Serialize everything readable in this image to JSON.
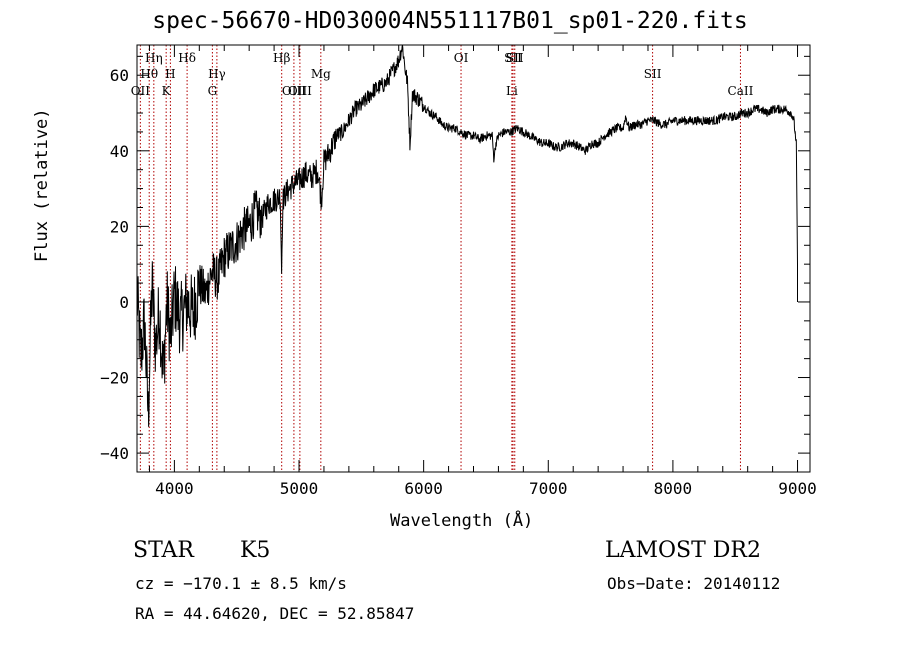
{
  "title": "spec-56670-HD030004N551117B01_sp01-220.fits",
  "footer": {
    "object_class": "STAR",
    "spectral_type": "K5",
    "survey": "LAMOST DR2",
    "cz_text": "cz = −170.1 ± 8.5 km/s",
    "obs_date_text": "Obs−Date: 20140112",
    "radec_text": "RA =  44.64620, DEC =  52.85847"
  },
  "chart_data": {
    "type": "line",
    "title": "spec-56670-HD030004N551117B01_sp01-220.fits",
    "xlabel": "Wavelength (Å)",
    "ylabel": "Flux (relative)",
    "xlim": [
      3700,
      9100
    ],
    "ylim": [
      -45,
      68
    ],
    "x_ticks": [
      4000,
      5000,
      6000,
      7000,
      8000,
      9000
    ],
    "y_ticks": [
      -40,
      -20,
      0,
      20,
      40,
      60
    ],
    "line_color": "#000000",
    "marker_color": "#b00000",
    "series": [
      {
        "x": [
          3700,
          3730,
          3760,
          3790,
          3820,
          3850,
          3880,
          3910,
          3940,
          3970,
          4000,
          4050,
          4100,
          4150,
          4200,
          4250,
          4300,
          4350,
          4400,
          4450,
          4500,
          4550,
          4600,
          4650,
          4700,
          4750,
          4800,
          4850,
          4860,
          4870,
          4900,
          4950,
          5000,
          5050,
          5100,
          5150,
          5180,
          5200,
          5250,
          5300,
          5350,
          5400,
          5450,
          5500,
          5550,
          5600,
          5650,
          5700,
          5750,
          5800,
          5830,
          5850,
          5870,
          5890,
          5900,
          5910,
          5950,
          6000,
          6050,
          6100,
          6150,
          6200,
          6250,
          6300,
          6350,
          6400,
          6450,
          6500,
          6550,
          6563,
          6580,
          6600,
          6650,
          6700,
          6750,
          6800,
          6850,
          6900,
          6950,
          7000,
          7050,
          7100,
          7150,
          7200,
          7250,
          7300,
          7350,
          7400,
          7450,
          7500,
          7550,
          7600,
          7620,
          7650,
          7700,
          7750,
          7800,
          7850,
          7900,
          7950,
          8000,
          8050,
          8100,
          8150,
          8200,
          8250,
          8300,
          8350,
          8400,
          8450,
          8500,
          8550,
          8600,
          8650,
          8700,
          8750,
          8800,
          8850,
          8900,
          8950,
          8970,
          8990,
          9000
        ],
        "y": [
          2,
          -15,
          -5,
          -30,
          5,
          -12,
          -2,
          -20,
          0,
          -10,
          2,
          -5,
          0,
          -3,
          5,
          2,
          8,
          6,
          12,
          14,
          16,
          19,
          20,
          24,
          22,
          26,
          27,
          28,
          8,
          27,
          29,
          31,
          32,
          34,
          33,
          35,
          27,
          37,
          40,
          44,
          45,
          48,
          51,
          52,
          54,
          56,
          57,
          58,
          61,
          64,
          68,
          62,
          58,
          42,
          48,
          55,
          54,
          52,
          50,
          49,
          47,
          46,
          46,
          45,
          44,
          44,
          43,
          44,
          44,
          38,
          42,
          44,
          45,
          45,
          46,
          45,
          44,
          43,
          42,
          42,
          41,
          41,
          42,
          42,
          41,
          40,
          42,
          42,
          44,
          45,
          46,
          46,
          49,
          46,
          47,
          47,
          48,
          48,
          47,
          47,
          48,
          48,
          48,
          48,
          48,
          48,
          48,
          48,
          49,
          49,
          49,
          50,
          50,
          51,
          51,
          50,
          51,
          51,
          51,
          50,
          48,
          42,
          10
        ]
      }
    ],
    "line_markers": [
      {
        "label": "OII",
        "x": 3727,
        "row": 3
      },
      {
        "label": "Hθ",
        "x": 3798,
        "row": 2
      },
      {
        "label": "Hη",
        "x": 3835,
        "row": 1
      },
      {
        "label": "K",
        "x": 3934,
        "row": 3
      },
      {
        "label": "H",
        "x": 3968,
        "row": 2
      },
      {
        "label": "Hδ",
        "x": 4102,
        "row": 1
      },
      {
        "label": "G",
        "x": 4305,
        "row": 3
      },
      {
        "label": "Hγ",
        "x": 4341,
        "row": 2
      },
      {
        "label": "Hβ",
        "x": 4861,
        "row": 1
      },
      {
        "label": "OIII",
        "x": 4959,
        "row": 3
      },
      {
        "label": "OIII",
        "x": 5007,
        "row": 3
      },
      {
        "label": "Mg",
        "x": 5175,
        "row": 2
      },
      {
        "label": "OI",
        "x": 6300,
        "row": 1
      },
      {
        "label": "Li",
        "x": 6708,
        "row": 3
      },
      {
        "label": "SII",
        "x": 6717,
        "row": 1
      },
      {
        "label": "SII",
        "x": 6731,
        "row": 1
      },
      {
        "label": "SII",
        "x": 7837,
        "row": 2
      },
      {
        "label": "CaII",
        "x": 8542,
        "row": 3
      }
    ]
  }
}
